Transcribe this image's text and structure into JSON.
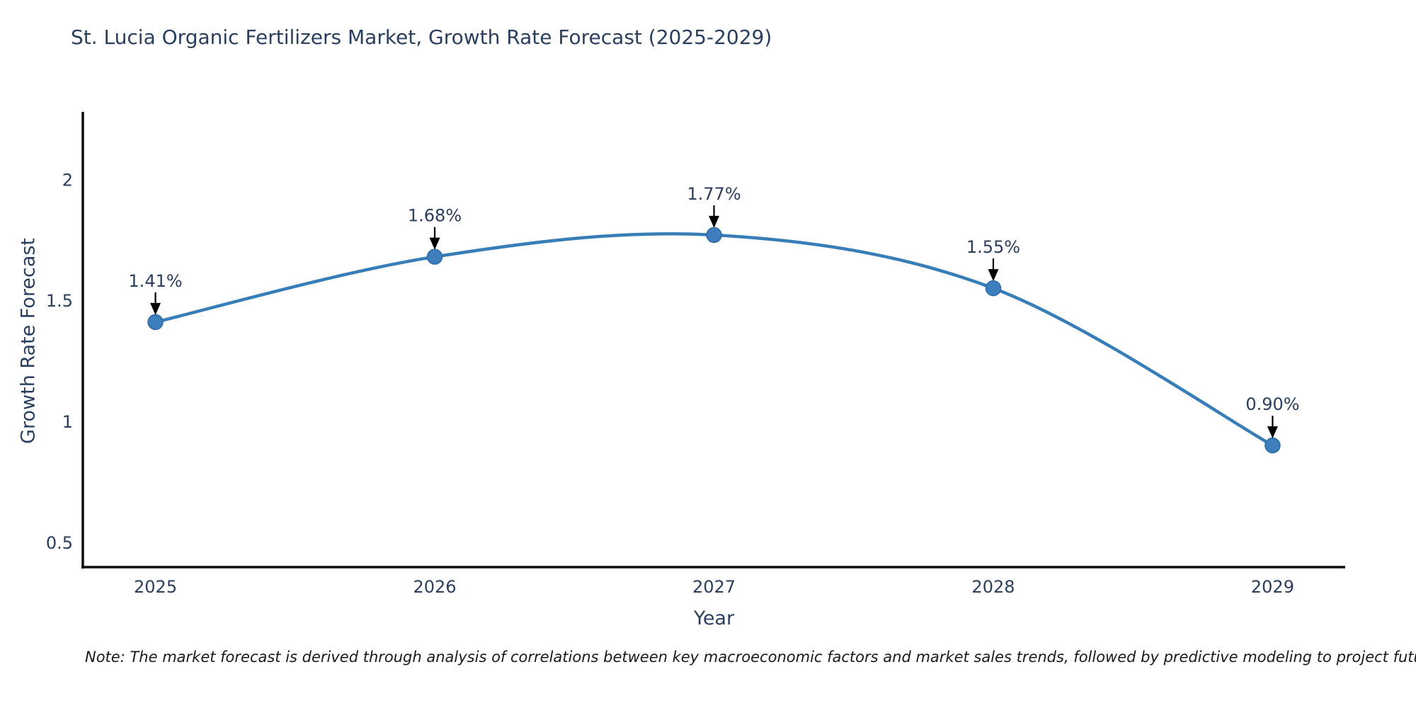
{
  "title": "St. Lucia Organic Fertilizers Market, Growth Rate Forecast (2025-2029)",
  "note": "Note: The market forecast is derived through analysis of correlations between key macroeconomic factors and market sales trends, followed by predictive modeling to project future sales",
  "chart_data": {
    "type": "line",
    "title": "St. Lucia Organic Fertilizers Market, Growth Rate Forecast (2025-2029)",
    "xlabel": "Year",
    "ylabel": "Growth Rate Forecast",
    "x": [
      2025,
      2026,
      2027,
      2028,
      2029
    ],
    "values": [
      1.41,
      1.68,
      1.77,
      1.55,
      0.9
    ],
    "point_labels": [
      "1.41%",
      "1.68%",
      "1.77%",
      "1.55%",
      "0.90%"
    ],
    "x_tick_labels": [
      "2025",
      "2026",
      "2027",
      "2028",
      "2029"
    ],
    "y_ticks": [
      {
        "value": 2,
        "label": "2"
      },
      {
        "value": 1.5,
        "label": "1.5"
      },
      {
        "value": 1,
        "label": "1"
      },
      {
        "value": 0.5,
        "label": "0.5"
      }
    ],
    "xlim": [
      2024.74,
      2029.26
    ],
    "ylim": [
      0.397,
      2.279
    ],
    "grid": false,
    "legend": "none",
    "line_shape": "spline",
    "colors": {
      "line": "#377eb8",
      "marker_fill": "#3d7ebc",
      "marker_edge": "#2f6ba3",
      "axis": "#0d0d0d",
      "tick_text": "#2a3f5f",
      "annotation_text": "#2a3f5f",
      "annotation_arrow": "#000000"
    }
  }
}
